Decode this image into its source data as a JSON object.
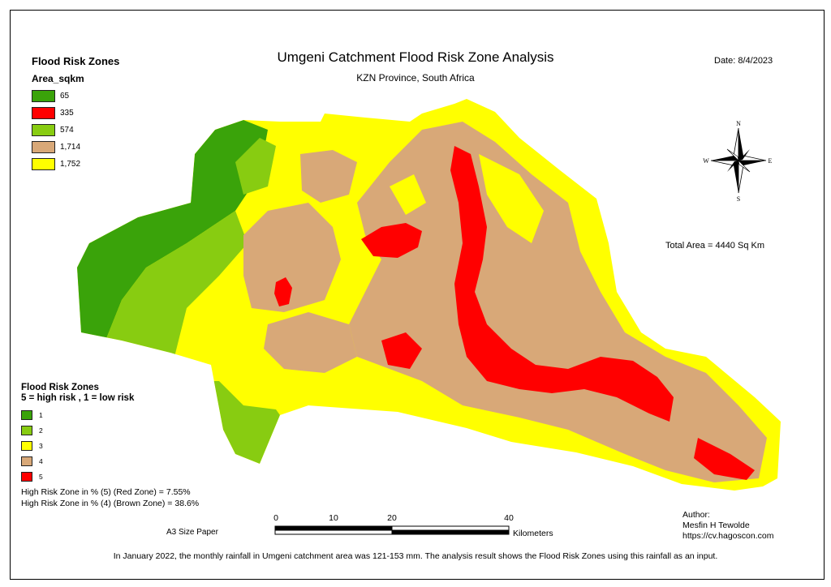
{
  "title": "Umgeni Catchment Flood Risk Zone Analysis",
  "subtitle": "KZN  Province, South Africa",
  "date": "Date: 8/4/2023",
  "legend_area": {
    "title": "Flood Risk Zones",
    "subtitle": "Area_sqkm",
    "items": [
      {
        "label": "65",
        "color": "#3aa30a"
      },
      {
        "label": "335",
        "color": "#ff0000"
      },
      {
        "label": "574",
        "color": "#88cc11"
      },
      {
        "label": "1,714",
        "color": "#d8a878"
      },
      {
        "label": "1,752",
        "color": "#ffff00"
      }
    ]
  },
  "legend_risk": {
    "title": "Flood Risk Zones",
    "subtitle": "5 = high risk , 1 = low risk",
    "items": [
      {
        "label": "1",
        "color": "#3aa30a"
      },
      {
        "label": "2",
        "color": "#88cc11"
      },
      {
        "label": "3",
        "color": "#ffff00"
      },
      {
        "label": "4",
        "color": "#d8a878"
      },
      {
        "label": "5",
        "color": "#ff0000"
      }
    ]
  },
  "stats": {
    "line1": "High Risk Zone in % (5)  (Red Zone)  =  7.55%",
    "line2": "High Risk Zone in % (4) (Brown Zone) =  38.6%",
    "total_area": "Total Area =  4440 Sq Km"
  },
  "north_arrow": {
    "n": "N",
    "s": "S",
    "e": "E",
    "w": "W"
  },
  "scale_bar": {
    "ticks": [
      "0",
      "10",
      "20",
      "40"
    ],
    "unit": "Kilometers",
    "paper": "A3 Size Paper"
  },
  "author": {
    "label": "Author:",
    "name": "Mesfin H Tewolde",
    "url": "https://cv.hagoscon.com"
  },
  "footnote": "In January 2022, the monthly rainfall in Umgeni catchment area was 121-153 mm. The analysis result shows the Flood Risk Zones using this rainfall as an input."
}
